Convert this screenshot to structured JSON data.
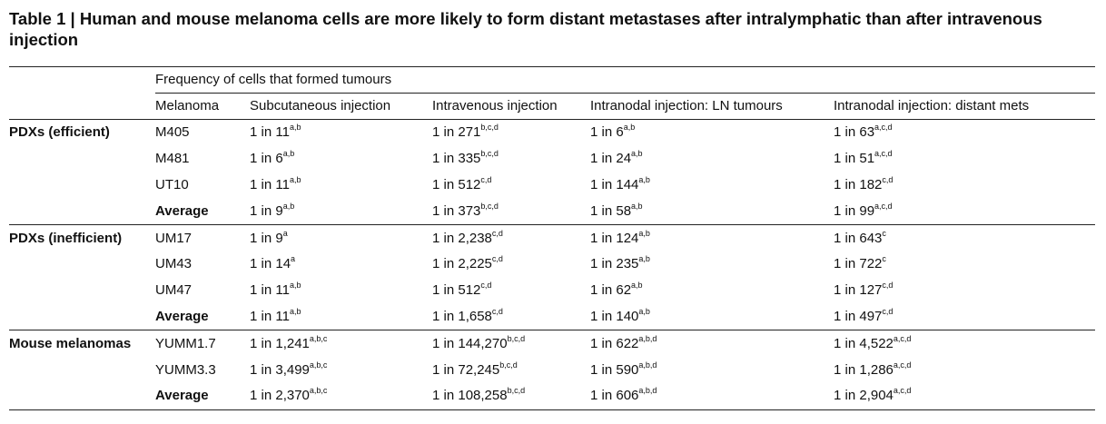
{
  "title": "Table 1 | Human and mouse melanoma cells are more likely to form distant metastases after intralymphatic than after intravenous injection",
  "header": {
    "frequency_label": "Frequency of cells that formed tumours",
    "columns": [
      "Melanoma",
      "Subcutaneous injection",
      "Intravenous injection",
      "Intranodal injection: LN tumours",
      "Intranodal injection: distant mets"
    ]
  },
  "groups": [
    {
      "label": "PDXs (efficient)",
      "rows": [
        {
          "melanoma": "M405",
          "cells": [
            [
              "1 in 11",
              "a,b"
            ],
            [
              "1 in 271",
              "b,c,d"
            ],
            [
              "1 in 6",
              "a,b"
            ],
            [
              "1 in 63",
              "a,c,d"
            ]
          ]
        },
        {
          "melanoma": "M481",
          "cells": [
            [
              "1 in 6",
              "a,b"
            ],
            [
              "1 in 335",
              "b,c,d"
            ],
            [
              "1 in 24",
              "a,b"
            ],
            [
              "1 in 51",
              "a,c,d"
            ]
          ]
        },
        {
          "melanoma": "UT10",
          "cells": [
            [
              "1 in 11",
              "a,b"
            ],
            [
              "1 in 512",
              "c,d"
            ],
            [
              "1 in 144",
              "a,b"
            ],
            [
              "1 in 182",
              "c,d"
            ]
          ]
        },
        {
          "melanoma": "Average",
          "average": true,
          "cells": [
            [
              "1 in 9",
              "a,b"
            ],
            [
              "1 in 373",
              "b,c,d"
            ],
            [
              "1 in 58",
              "a,b"
            ],
            [
              "1 in 99",
              "a,c,d"
            ]
          ]
        }
      ]
    },
    {
      "label": "PDXs (inefficient)",
      "rows": [
        {
          "melanoma": "UM17",
          "cells": [
            [
              "1 in 9",
              "a"
            ],
            [
              "1 in 2,238",
              "c,d"
            ],
            [
              "1 in 124",
              "a,b"
            ],
            [
              "1 in 643",
              "c"
            ]
          ]
        },
        {
          "melanoma": "UM43",
          "cells": [
            [
              "1 in 14",
              "a"
            ],
            [
              "1 in 2,225",
              "c,d"
            ],
            [
              "1 in 235",
              "a,b"
            ],
            [
              "1 in 722",
              "c"
            ]
          ]
        },
        {
          "melanoma": "UM47",
          "cells": [
            [
              "1 in 11",
              "a,b"
            ],
            [
              "1 in 512",
              "c,d"
            ],
            [
              "1 in 62",
              "a,b"
            ],
            [
              "1 in 127",
              "c,d"
            ]
          ]
        },
        {
          "melanoma": "Average",
          "average": true,
          "cells": [
            [
              "1 in 11",
              "a,b"
            ],
            [
              "1 in 1,658",
              "c,d"
            ],
            [
              "1 in 140",
              "a,b"
            ],
            [
              "1 in 497",
              "c,d"
            ]
          ]
        }
      ]
    },
    {
      "label": "Mouse melanomas",
      "rows": [
        {
          "melanoma": "YUMM1.7",
          "cells": [
            [
              "1 in 1,241",
              "a,b,c"
            ],
            [
              "1 in 144,270",
              "b,c,d"
            ],
            [
              "1 in 622",
              "a,b,d"
            ],
            [
              "1 in 4,522",
              "a,c,d"
            ]
          ]
        },
        {
          "melanoma": "YUMM3.3",
          "cells": [
            [
              "1 in 3,499",
              "a,b,c"
            ],
            [
              "1 in 72,245",
              "b,c,d"
            ],
            [
              "1 in 590",
              "a,b,d"
            ],
            [
              "1 in 1,286",
              "a,c,d"
            ]
          ]
        },
        {
          "melanoma": "Average",
          "average": true,
          "cells": [
            [
              "1 in 2,370",
              "a,b,c"
            ],
            [
              "1 in 108,258",
              "b,c,d"
            ],
            [
              "1 in 606",
              "a,b,d"
            ],
            [
              "1 in 2,904",
              "a,c,d"
            ]
          ]
        }
      ]
    }
  ]
}
